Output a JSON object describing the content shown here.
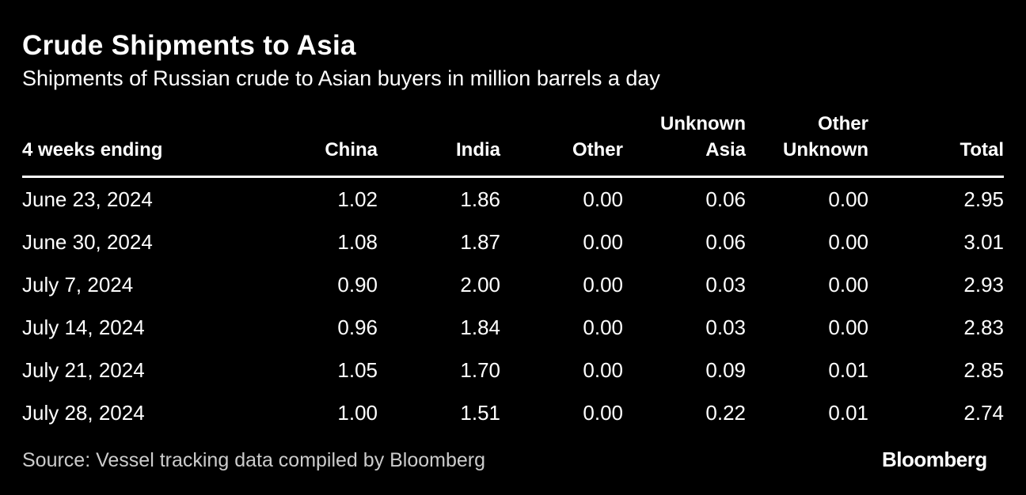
{
  "chart_data": {
    "type": "table",
    "title": "Crude Shipments to Asia",
    "subtitle": "Shipments of Russian crude to Asian buyers in million barrels a day",
    "columns": [
      {
        "line1": "",
        "line2": "4 weeks ending"
      },
      {
        "line1": "",
        "line2": "China"
      },
      {
        "line1": "",
        "line2": "India"
      },
      {
        "line1": "",
        "line2": "Other"
      },
      {
        "line1": "Unknown",
        "line2": "Asia"
      },
      {
        "line1": "Other",
        "line2": "Unknown"
      },
      {
        "line1": "",
        "line2": "Total"
      }
    ],
    "rows": [
      [
        "June 23, 2024",
        "1.02",
        "1.86",
        "0.00",
        "0.06",
        "0.00",
        "2.95"
      ],
      [
        "June 30, 2024",
        "1.08",
        "1.87",
        "0.00",
        "0.06",
        "0.00",
        "3.01"
      ],
      [
        "July 7, 2024",
        "0.90",
        "2.00",
        "0.00",
        "0.03",
        "0.00",
        "2.93"
      ],
      [
        "July 14, 2024",
        "0.96",
        "1.84",
        "0.00",
        "0.03",
        "0.00",
        "2.83"
      ],
      [
        "July 21, 2024",
        "1.05",
        "1.70",
        "0.00",
        "0.09",
        "0.01",
        "2.85"
      ],
      [
        "July 28, 2024",
        "1.00",
        "1.51",
        "0.00",
        "0.22",
        "0.01",
        "2.74"
      ]
    ],
    "source": "Source: Vessel tracking data compiled by Bloomberg"
  },
  "brand": "Bloomberg",
  "colors": {
    "background": "#000000",
    "text": "#ffffff",
    "source_text": "#cccccc"
  }
}
